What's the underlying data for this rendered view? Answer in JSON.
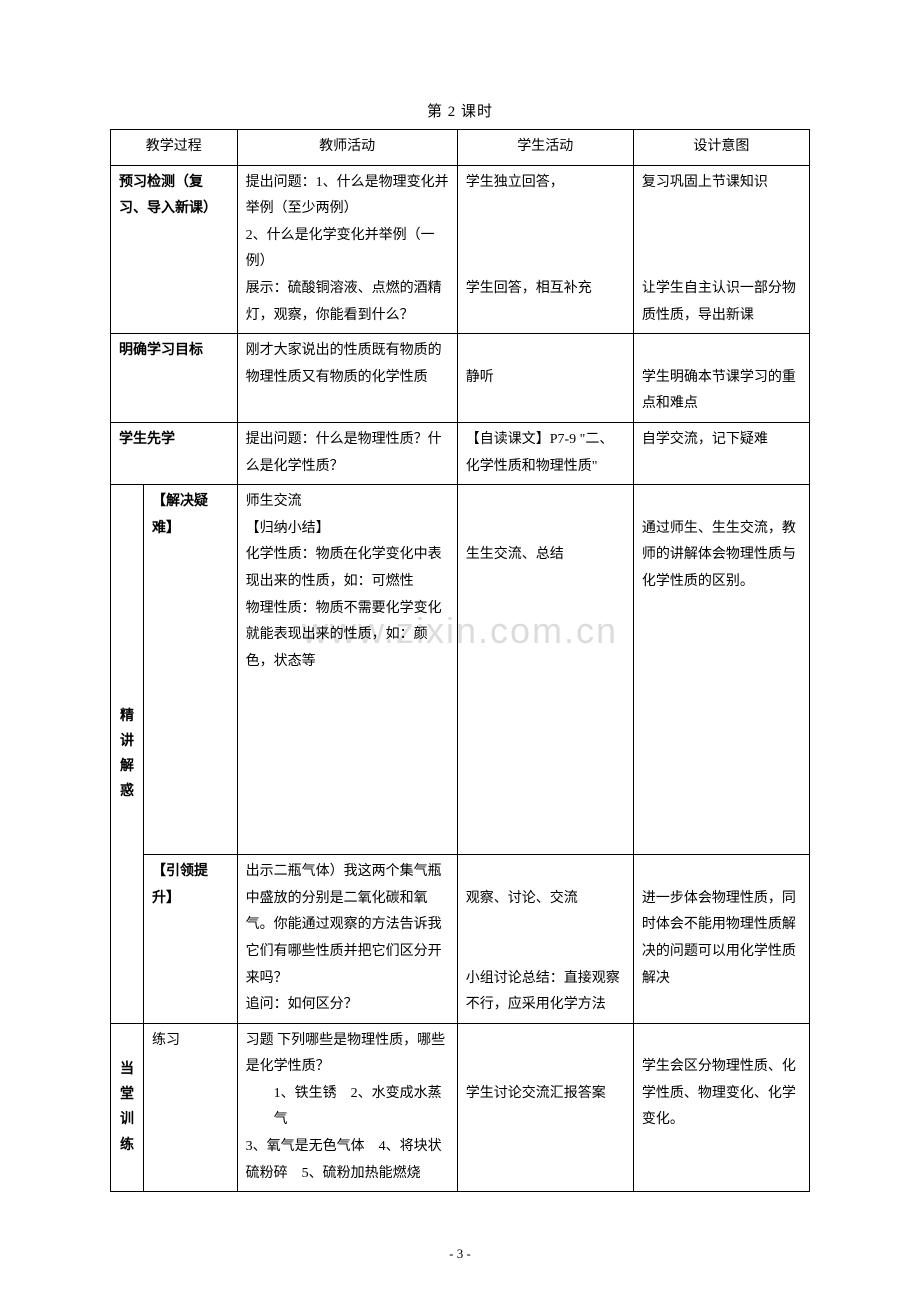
{
  "title": "第 2 课时",
  "watermark": "www.zixin.com.cn",
  "footer": "- 3 -",
  "table": {
    "header": [
      "教学过程",
      "教师活动",
      "学生活动",
      "设计意图"
    ],
    "rows": [
      {
        "process": "预习检测（复习、导入新课）",
        "teacher": "提出问题：1、什么是物理变化并举例（至少两例）\n2、什么是化学变化并举例（一例）\n展示：硫酸铜溶液、点燃的酒精灯，观察，你能看到什么？",
        "student": "学生独立回答，\n\n\n\n学生回答，相互补充",
        "intent": "复习巩固上节课知识\n\n\n\n让学生自主认识一部分物质性质，导出新课"
      },
      {
        "process": "明确学习目标",
        "teacher": "刚才大家说出的性质既有物质的物理性质又有物质的化学性质",
        "student": "\n静听",
        "intent": "\n学生明确本节课学习的重点和难点"
      },
      {
        "process": "学生先学",
        "teacher": "提出问题：什么是物理性质？什么是化学性质？",
        "student": "【自读课文】P7-9 \"二、化学性质和物理性质\"",
        "intent": "自学交流，记下疑难"
      },
      {
        "group_label": "精讲解惑",
        "process": "【解决疑难】",
        "teacher": "师生交流\n【归纳小结】\n化学性质：物质在化学变化中表现出来的性质，如：可燃性\n物理性质：物质不需要化学变化就能表现出来的性质，如：颜色，状态等",
        "student": "\n\n生生交流、总结",
        "intent": "\n通过师生、生生交流，教师的讲解体会物理性质与化学性质的区别。"
      },
      {
        "process": "【引领提升】",
        "teacher": "出示二瓶气体）我这两个集气瓶中盛放的分别是二氧化碳和氧气。你能通过观察的方法告诉我它们有哪些性质并把它们区分开来吗？\n追问：如何区分？",
        "student": "\n观察、讨论、交流\n\n\n小组讨论总结：直接观察不行，应采用化学方法",
        "intent": "\n进一步体会物理性质，同时体会不能用物理性质解决的问题可以用化学性质解决"
      },
      {
        "group_label": "当堂训练",
        "process": "练习",
        "teacher_lines": [
          "习题 下列哪些是物理性质，哪些是化学性质？",
          "1、铁生锈　2、水变成水蒸气",
          "3、氧气是无色气体　4、将块状硫粉碎　5、硫粉加热能燃烧"
        ],
        "student": "\n\n学生讨论交流汇报答案",
        "intent": "\n学生会区分物理性质、化学性质、物理变化、化学变化。"
      }
    ]
  }
}
